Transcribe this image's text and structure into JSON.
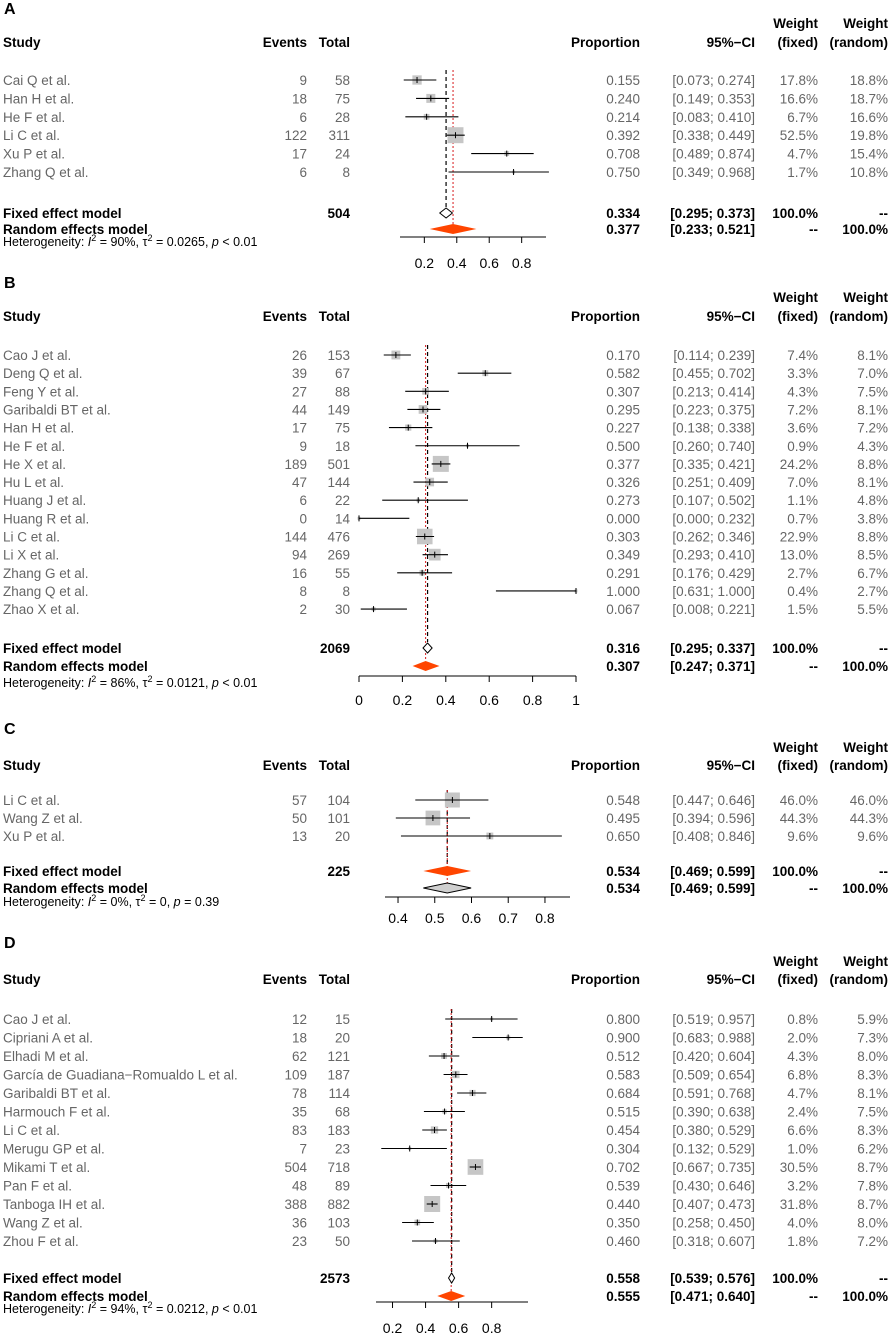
{
  "colors": {
    "diamond_fill": "#FF4500",
    "box_fill": "#c6c6c6",
    "ref_line": "#d7191c",
    "study_text": "#666666",
    "bold_text": "#000000"
  },
  "headers": {
    "study": "Study",
    "events": "Events",
    "total": "Total",
    "proportion": "Proportion",
    "ci": "95%−CI",
    "weight": "Weight",
    "fixed": "(fixed)",
    "random": "(random)"
  },
  "chart_data": [
    {
      "type": "forest",
      "panel": "A",
      "xlim": [
        0.05,
        0.95
      ],
      "ticks": [
        0.2,
        0.4,
        0.6,
        0.8
      ],
      "tick_labels": [
        "0.2",
        "0.4",
        "0.6",
        "0.8"
      ],
      "studies": [
        {
          "name": "Cai Q et al.",
          "events": "9",
          "total": "58",
          "prop": 0.155,
          "lo": 0.073,
          "hi": 0.274,
          "prop_text": "0.155",
          "ci_text": "[0.073; 0.274]",
          "wf": "17.8%",
          "wr": "18.8%",
          "wf_num": 17.8
        },
        {
          "name": "Han H et al.",
          "events": "18",
          "total": "75",
          "prop": 0.24,
          "lo": 0.149,
          "hi": 0.353,
          "prop_text": "0.240",
          "ci_text": "[0.149; 0.353]",
          "wf": "16.6%",
          "wr": "18.7%",
          "wf_num": 16.6
        },
        {
          "name": "He F et al.",
          "events": "6",
          "total": "28",
          "prop": 0.214,
          "lo": 0.083,
          "hi": 0.41,
          "prop_text": "0.214",
          "ci_text": "[0.083; 0.410]",
          "wf": "6.7%",
          "wr": "16.6%",
          "wf_num": 6.7
        },
        {
          "name": "Li C et al.",
          "events": "122",
          "total": "311",
          "prop": 0.392,
          "lo": 0.338,
          "hi": 0.449,
          "prop_text": "0.392",
          "ci_text": "[0.338; 0.449]",
          "wf": "52.5%",
          "wr": "19.8%",
          "wf_num": 52.5
        },
        {
          "name": "Xu P et al.",
          "events": "17",
          "total": "24",
          "prop": 0.708,
          "lo": 0.489,
          "hi": 0.874,
          "prop_text": "0.708",
          "ci_text": "[0.489; 0.874]",
          "wf": "4.7%",
          "wr": "15.4%",
          "wf_num": 4.7
        },
        {
          "name": "Zhang Q et al.",
          "events": "6",
          "total": "8",
          "prop": 0.75,
          "lo": 0.349,
          "hi": 0.968,
          "prop_text": "0.750",
          "ci_text": "[0.349; 0.968]",
          "wf": "1.7%",
          "wr": "10.8%",
          "wf_num": 1.7
        }
      ],
      "fixed": {
        "label": "Fixed effect model",
        "total": "504",
        "est": 0.334,
        "lo": 0.295,
        "hi": 0.373,
        "prop_text": "0.334",
        "ci_text": "[0.295; 0.373]",
        "wf": "100.0%",
        "wr": "--"
      },
      "random": {
        "label": "Random effects model",
        "est": 0.377,
        "lo": 0.233,
        "hi": 0.521,
        "prop_text": "0.377",
        "ci_text": "[0.233; 0.521]",
        "wf": "--",
        "wr": "100.0%"
      },
      "heterogeneity": {
        "prefix": "Heterogeneity: ",
        "i2": "90%",
        "tau2": "0.0265",
        "p": "< 0.01"
      },
      "serif_studies": true
    },
    {
      "type": "forest",
      "panel": "B",
      "xlim": [
        0,
        1
      ],
      "ticks": [
        0,
        0.2,
        0.4,
        0.6,
        0.8,
        1
      ],
      "tick_labels": [
        "0",
        "0.2",
        "0.4",
        "0.6",
        "0.8",
        "1"
      ],
      "studies": [
        {
          "name": "Cao J et al.",
          "events": "26",
          "total": "153",
          "prop": 0.17,
          "lo": 0.114,
          "hi": 0.239,
          "prop_text": "0.170",
          "ci_text": "[0.114; 0.239]",
          "wf": "7.4%",
          "wr": "8.1%",
          "wf_num": 7.4
        },
        {
          "name": "Deng Q et al.",
          "events": "39",
          "total": "67",
          "prop": 0.582,
          "lo": 0.455,
          "hi": 0.702,
          "prop_text": "0.582",
          "ci_text": "[0.455; 0.702]",
          "wf": "3.3%",
          "wr": "7.0%",
          "wf_num": 3.3
        },
        {
          "name": "Feng Y et al.",
          "events": "27",
          "total": "88",
          "prop": 0.307,
          "lo": 0.213,
          "hi": 0.414,
          "prop_text": "0.307",
          "ci_text": "[0.213; 0.414]",
          "wf": "4.3%",
          "wr": "7.5%",
          "wf_num": 4.3
        },
        {
          "name": "Garibaldi BT et al.",
          "events": "44",
          "total": "149",
          "prop": 0.295,
          "lo": 0.223,
          "hi": 0.375,
          "prop_text": "0.295",
          "ci_text": "[0.223; 0.375]",
          "wf": "7.2%",
          "wr": "8.1%",
          "wf_num": 7.2
        },
        {
          "name": "Han H et al.",
          "events": "17",
          "total": "75",
          "prop": 0.227,
          "lo": 0.138,
          "hi": 0.338,
          "prop_text": "0.227",
          "ci_text": "[0.138; 0.338]",
          "wf": "3.6%",
          "wr": "7.2%",
          "wf_num": 3.6
        },
        {
          "name": "He F et al.",
          "events": "9",
          "total": "18",
          "prop": 0.5,
          "lo": 0.26,
          "hi": 0.74,
          "prop_text": "0.500",
          "ci_text": "[0.260; 0.740]",
          "wf": "0.9%",
          "wr": "4.3%",
          "wf_num": 0.9
        },
        {
          "name": "He X et al.",
          "events": "189",
          "total": "501",
          "prop": 0.377,
          "lo": 0.335,
          "hi": 0.421,
          "prop_text": "0.377",
          "ci_text": "[0.335; 0.421]",
          "wf": "24.2%",
          "wr": "8.8%",
          "wf_num": 24.2
        },
        {
          "name": "Hu L et al.",
          "events": "47",
          "total": "144",
          "prop": 0.326,
          "lo": 0.251,
          "hi": 0.409,
          "prop_text": "0.326",
          "ci_text": "[0.251; 0.409]",
          "wf": "7.0%",
          "wr": "8.1%",
          "wf_num": 7.0
        },
        {
          "name": "Huang J et al.",
          "events": "6",
          "total": "22",
          "prop": 0.273,
          "lo": 0.107,
          "hi": 0.502,
          "prop_text": "0.273",
          "ci_text": "[0.107; 0.502]",
          "wf": "1.1%",
          "wr": "4.8%",
          "wf_num": 1.1
        },
        {
          "name": "Huang R et al.",
          "events": "0",
          "total": "14",
          "prop": 0.0,
          "lo": 0.0,
          "hi": 0.232,
          "prop_text": "0.000",
          "ci_text": "[0.000; 0.232]",
          "wf": "0.7%",
          "wr": "3.8%",
          "wf_num": 0.7
        },
        {
          "name": "Li C et al.",
          "events": "144",
          "total": "476",
          "prop": 0.303,
          "lo": 0.262,
          "hi": 0.346,
          "prop_text": "0.303",
          "ci_text": "[0.262; 0.346]",
          "wf": "22.9%",
          "wr": "8.8%",
          "wf_num": 22.9
        },
        {
          "name": "Li X et al.",
          "events": "94",
          "total": "269",
          "prop": 0.349,
          "lo": 0.293,
          "hi": 0.41,
          "prop_text": "0.349",
          "ci_text": "[0.293; 0.410]",
          "wf": "13.0%",
          "wr": "8.5%",
          "wf_num": 13.0
        },
        {
          "name": "Zhang G et al.",
          "events": "16",
          "total": "55",
          "prop": 0.291,
          "lo": 0.176,
          "hi": 0.429,
          "prop_text": "0.291",
          "ci_text": "[0.176; 0.429]",
          "wf": "2.7%",
          "wr": "6.7%",
          "wf_num": 2.7
        },
        {
          "name": "Zhang Q et al.",
          "events": "8",
          "total": "8",
          "prop": 1.0,
          "lo": 0.631,
          "hi": 1.0,
          "prop_text": "1.000",
          "ci_text": "[0.631; 1.000]",
          "wf": "0.4%",
          "wr": "2.7%",
          "wf_num": 0.4
        },
        {
          "name": "Zhao X et al.",
          "events": "2",
          "total": "30",
          "prop": 0.067,
          "lo": 0.008,
          "hi": 0.221,
          "prop_text": "0.067",
          "ci_text": "[0.008; 0.221]",
          "wf": "1.5%",
          "wr": "5.5%",
          "wf_num": 1.5
        }
      ],
      "fixed": {
        "label": "Fixed effect model",
        "total": "2069",
        "est": 0.316,
        "lo": 0.295,
        "hi": 0.337,
        "prop_text": "0.316",
        "ci_text": "[0.295; 0.337]",
        "wf": "100.0%",
        "wr": "--"
      },
      "random": {
        "label": "Random effects model",
        "est": 0.307,
        "lo": 0.247,
        "hi": 0.371,
        "prop_text": "0.307",
        "ci_text": "[0.247; 0.371]",
        "wf": "--",
        "wr": "100.0%"
      },
      "heterogeneity": {
        "prefix": "Heterogeneity: ",
        "i2": "86%",
        "tau2": "0.0121",
        "p": "< 0.01"
      },
      "serif_studies": true
    },
    {
      "type": "forest",
      "panel": "C",
      "xlim": [
        0.37,
        0.86
      ],
      "ticks": [
        0.4,
        0.5,
        0.6,
        0.7,
        0.8
      ],
      "tick_labels": [
        "0.4",
        "0.5",
        "0.6",
        "0.7",
        "0.8"
      ],
      "studies": [
        {
          "name": "Li C et al.",
          "events": "57",
          "total": "104",
          "prop": 0.548,
          "lo": 0.447,
          "hi": 0.646,
          "prop_text": "0.548",
          "ci_text": "[0.447; 0.646]",
          "wf": "46.0%",
          "wr": "46.0%",
          "wf_num": 46.0
        },
        {
          "name": "Wang Z et al.",
          "events": "50",
          "total": "101",
          "prop": 0.495,
          "lo": 0.394,
          "hi": 0.596,
          "prop_text": "0.495",
          "ci_text": "[0.394; 0.596]",
          "wf": "44.3%",
          "wr": "44.3%",
          "wf_num": 44.3
        },
        {
          "name": "Xu P et al.",
          "events": "13",
          "total": "20",
          "prop": 0.65,
          "lo": 0.408,
          "hi": 0.846,
          "prop_text": "0.650",
          "ci_text": "[0.408; 0.846]",
          "wf": "9.6%",
          "wr": "9.6%",
          "wf_num": 9.6
        }
      ],
      "fixed": {
        "label": "Fixed effect model",
        "total": "225",
        "est": 0.534,
        "lo": 0.469,
        "hi": 0.599,
        "prop_text": "0.534",
        "ci_text": "[0.469; 0.599]",
        "wf": "100.0%",
        "wr": "--"
      },
      "random": {
        "label": "Random effects model",
        "est": 0.534,
        "lo": 0.469,
        "hi": 0.599,
        "prop_text": "0.534",
        "ci_text": "[0.469; 0.599]",
        "wf": "--",
        "wr": "100.0%"
      },
      "heterogeneity": {
        "prefix": "Heterogeneity: ",
        "i2": "0%",
        "tau2": "0",
        "p": "= 0.39"
      },
      "serif_studies": true,
      "serif_numbers": true
    },
    {
      "type": "forest",
      "panel": "D",
      "xlim": [
        0.1,
        1.02
      ],
      "ticks": [
        0.2,
        0.4,
        0.6,
        0.8
      ],
      "tick_labels": [
        "0.2",
        "0.4",
        "0.6",
        "0.8"
      ],
      "studies": [
        {
          "name": "Cao J et al.",
          "events": "12",
          "total": "15",
          "prop": 0.8,
          "lo": 0.519,
          "hi": 0.957,
          "prop_text": "0.800",
          "ci_text": "[0.519; 0.957]",
          "wf": "0.8%",
          "wr": "5.9%",
          "wf_num": 0.8
        },
        {
          "name": "Cipriani A et al.",
          "events": "18",
          "total": "20",
          "prop": 0.9,
          "lo": 0.683,
          "hi": 0.988,
          "prop_text": "0.900",
          "ci_text": "[0.683; 0.988]",
          "wf": "2.0%",
          "wr": "7.3%",
          "wf_num": 2.0
        },
        {
          "name": "Elhadi M et al.",
          "events": "62",
          "total": "121",
          "prop": 0.512,
          "lo": 0.42,
          "hi": 0.604,
          "prop_text": "0.512",
          "ci_text": "[0.420; 0.604]",
          "wf": "4.3%",
          "wr": "8.0%",
          "wf_num": 4.3
        },
        {
          "name": "García de Guadiana−Romualdo L et al.",
          "events": "109",
          "total": "187",
          "prop": 0.583,
          "lo": 0.509,
          "hi": 0.654,
          "prop_text": "0.583",
          "ci_text": "[0.509; 0.654]",
          "wf": "6.8%",
          "wr": "8.3%",
          "wf_num": 6.8
        },
        {
          "name": "Garibaldi BT et al.",
          "events": "78",
          "total": "114",
          "prop": 0.684,
          "lo": 0.591,
          "hi": 0.768,
          "prop_text": "0.684",
          "ci_text": "[0.591; 0.768]",
          "wf": "4.7%",
          "wr": "8.1%",
          "wf_num": 4.7
        },
        {
          "name": "Harmouch F et al.",
          "events": "35",
          "total": "68",
          "prop": 0.515,
          "lo": 0.39,
          "hi": 0.638,
          "prop_text": "0.515",
          "ci_text": "[0.390; 0.638]",
          "wf": "2.4%",
          "wr": "7.5%",
          "wf_num": 2.4
        },
        {
          "name": "Li C et al.",
          "events": "83",
          "total": "183",
          "prop": 0.454,
          "lo": 0.38,
          "hi": 0.529,
          "prop_text": "0.454",
          "ci_text": "[0.380; 0.529]",
          "wf": "6.6%",
          "wr": "8.3%",
          "wf_num": 6.6
        },
        {
          "name": "Merugu GP et al.",
          "events": "7",
          "total": "23",
          "prop": 0.304,
          "lo": 0.132,
          "hi": 0.529,
          "prop_text": "0.304",
          "ci_text": "[0.132; 0.529]",
          "wf": "1.0%",
          "wr": "6.2%",
          "wf_num": 1.0
        },
        {
          "name": "Mikami T et al.",
          "events": "504",
          "total": "718",
          "prop": 0.702,
          "lo": 0.667,
          "hi": 0.735,
          "prop_text": "0.702",
          "ci_text": "[0.667; 0.735]",
          "wf": "30.5%",
          "wr": "8.7%",
          "wf_num": 30.5
        },
        {
          "name": "Pan F et al.",
          "events": "48",
          "total": "89",
          "prop": 0.539,
          "lo": 0.43,
          "hi": 0.646,
          "prop_text": "0.539",
          "ci_text": "[0.430; 0.646]",
          "wf": "3.2%",
          "wr": "7.8%",
          "wf_num": 3.2
        },
        {
          "name": "Tanboga IH et al.",
          "events": "388",
          "total": "882",
          "prop": 0.44,
          "lo": 0.407,
          "hi": 0.473,
          "prop_text": "0.440",
          "ci_text": "[0.407; 0.473]",
          "wf": "31.8%",
          "wr": "8.7%",
          "wf_num": 31.8
        },
        {
          "name": "Wang Z et al.",
          "events": "36",
          "total": "103",
          "prop": 0.35,
          "lo": 0.258,
          "hi": 0.45,
          "prop_text": "0.350",
          "ci_text": "[0.258; 0.450]",
          "wf": "4.0%",
          "wr": "8.0%",
          "wf_num": 4.0
        },
        {
          "name": "Zhou F et al.",
          "events": "23",
          "total": "50",
          "prop": 0.46,
          "lo": 0.318,
          "hi": 0.607,
          "prop_text": "0.460",
          "ci_text": "[0.318; 0.607]",
          "wf": "1.8%",
          "wr": "7.2%",
          "wf_num": 1.8
        }
      ],
      "fixed": {
        "label": "Fixed effect model",
        "total": "2573",
        "est": 0.558,
        "lo": 0.539,
        "hi": 0.576,
        "prop_text": "0.558",
        "ci_text": "[0.539; 0.576]",
        "wf": "100.0%",
        "wr": "--"
      },
      "random": {
        "label": "Random effects model",
        "est": 0.555,
        "lo": 0.471,
        "hi": 0.64,
        "prop_text": "0.555",
        "ci_text": "[0.471; 0.640]",
        "wf": "--",
        "wr": "100.0%"
      },
      "heterogeneity": {
        "prefix": "Heterogeneity: ",
        "i2": "94%",
        "tau2": "0.0212",
        "p": "< 0.01"
      },
      "serif_studies": true
    }
  ]
}
